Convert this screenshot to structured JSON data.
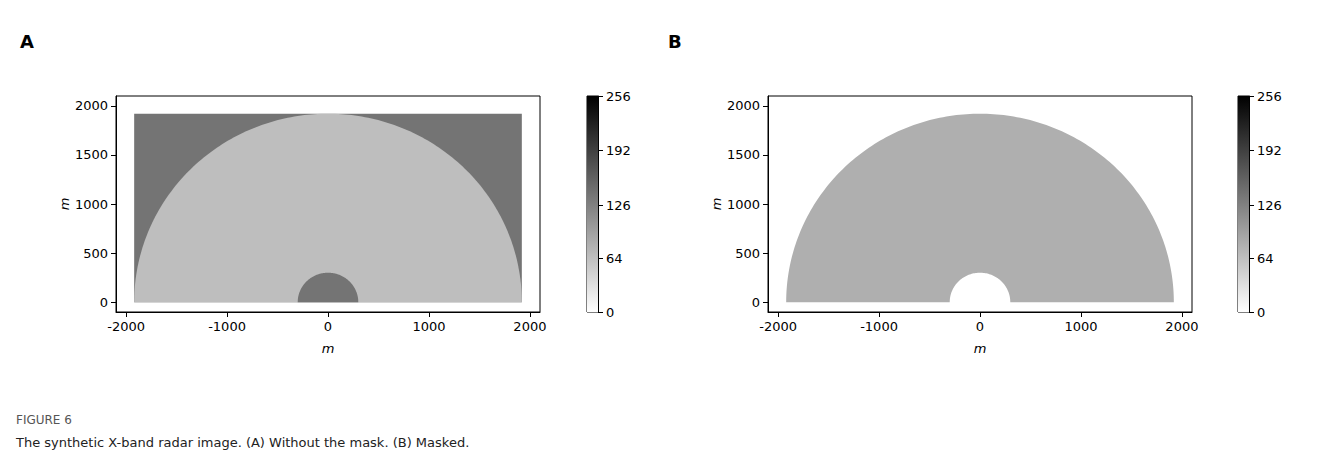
{
  "caption": {
    "label": "FIGURE 6",
    "text": "The synthetic X-band radar image. (A) Without the mask. (B) Masked."
  },
  "chart_data": [
    {
      "type": "image",
      "title": "A",
      "xlabel": "m",
      "ylabel": "m",
      "xlim": [
        -2100,
        2100
      ],
      "ylim": [
        -100,
        2100
      ],
      "xticks": [
        -2000,
        -1000,
        0,
        1000,
        2000
      ],
      "yticks": [
        0,
        500,
        1000,
        1500,
        2000
      ],
      "regions": [
        {
          "shape": "rect",
          "x": [
            -1920,
            1920
          ],
          "y": [
            0,
            1920
          ],
          "value": 140
        },
        {
          "shape": "semicircle",
          "radius": 1920,
          "value": 65
        },
        {
          "shape": "semicircle",
          "radius": 300,
          "value": 140
        }
      ],
      "colorbar": {
        "range": [
          0,
          256
        ],
        "ticks": [
          0,
          64,
          126,
          192,
          256
        ]
      }
    },
    {
      "type": "image",
      "title": "B",
      "xlabel": "m",
      "ylabel": "m",
      "xlim": [
        -2100,
        2100
      ],
      "ylim": [
        -100,
        2100
      ],
      "xticks": [
        -2000,
        -1000,
        0,
        1000,
        2000
      ],
      "yticks": [
        0,
        500,
        1000,
        1500,
        2000
      ],
      "regions": [
        {
          "shape": "annulus",
          "radius": [
            300,
            1920
          ],
          "value": 80
        }
      ],
      "colorbar": {
        "range": [
          0,
          256
        ],
        "ticks": [
          0,
          64,
          126,
          192,
          256
        ]
      }
    }
  ]
}
